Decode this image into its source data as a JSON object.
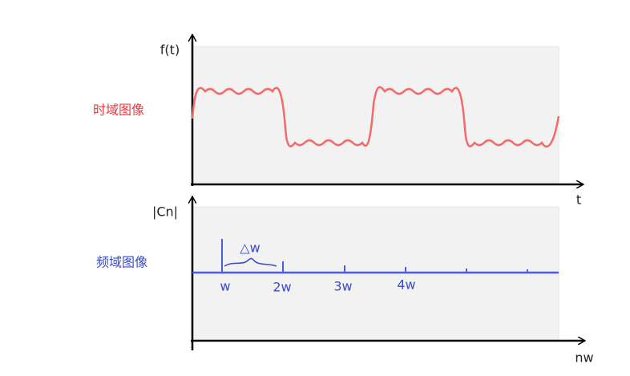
{
  "time_domain": {
    "y_label": "f(t)",
    "x_label": "t",
    "title": "时域图像"
  },
  "freq_domain": {
    "y_label": "|Cn|",
    "x_label": "nw",
    "title": "频域图像",
    "delta_label": "△w",
    "harmonics": [
      "w",
      "2w",
      "3w",
      "4w"
    ]
  }
}
